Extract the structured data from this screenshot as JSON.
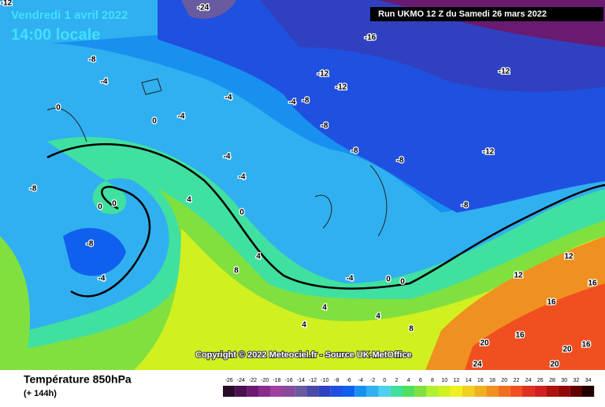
{
  "header": {
    "date": "Vendredi 1 avril 2022",
    "time": "14:00 locale",
    "run": "Run UKMO 12 Z du Samedi 26 mars 2022"
  },
  "copyright": "Copyright © 2022 Meteociel.fr - Source UK-MetOffice",
  "legend": {
    "title": "Température 850hPa",
    "subtitle": "(+ 144h)",
    "scale": [
      {
        "label": "-26",
        "color": "#2a0a2a"
      },
      {
        "label": "-24",
        "color": "#4a1050"
      },
      {
        "label": "-22",
        "color": "#6a1a70"
      },
      {
        "label": "-20",
        "color": "#8a2a8a"
      },
      {
        "label": "-18",
        "color": "#a040a0"
      },
      {
        "label": "-16",
        "color": "#8a4a9a"
      },
      {
        "label": "-14",
        "color": "#6a5aa0"
      },
      {
        "label": "-12",
        "color": "#4a4aa8"
      },
      {
        "label": "-10",
        "color": "#3040c0"
      },
      {
        "label": "-8",
        "color": "#2050e0"
      },
      {
        "label": "-6",
        "color": "#1060f0"
      },
      {
        "label": "-4",
        "color": "#1890f0"
      },
      {
        "label": "-2",
        "color": "#30b0f0"
      },
      {
        "label": "0",
        "color": "#50d0f0"
      },
      {
        "label": "2",
        "color": "#40e0a0"
      },
      {
        "label": "4",
        "color": "#50e060"
      },
      {
        "label": "6",
        "color": "#80e040"
      },
      {
        "label": "8",
        "color": "#b0f030"
      },
      {
        "label": "10",
        "color": "#d0f020"
      },
      {
        "label": "12",
        "color": "#f0f020"
      },
      {
        "label": "14",
        "color": "#f0d020"
      },
      {
        "label": "16",
        "color": "#f0b020"
      },
      {
        "label": "18",
        "color": "#f09020"
      },
      {
        "label": "20",
        "color": "#f07020"
      },
      {
        "label": "22",
        "color": "#f05020"
      },
      {
        "label": "24",
        "color": "#e03020"
      },
      {
        "label": "26",
        "color": "#d02020"
      },
      {
        "label": "28",
        "color": "#b01010"
      },
      {
        "label": "30",
        "color": "#900808"
      },
      {
        "label": "32",
        "color": "#600000"
      },
      {
        "label": "34",
        "color": "#200000"
      }
    ]
  },
  "contour_labels": [
    "-24",
    "-16",
    "-12",
    "-12",
    "-12",
    "-12",
    "-8",
    "-8",
    "-8",
    "-8",
    "-8",
    "-8",
    "-8",
    "-8",
    "-4",
    "-4",
    "-4",
    "-4",
    "-4",
    "-4",
    "-4",
    "-4",
    "0",
    "0",
    "0",
    "0",
    "0",
    "0",
    "0",
    "4",
    "4",
    "4",
    "4",
    "4",
    "8",
    "8",
    "12",
    "12",
    "16",
    "16",
    "16",
    "20",
    "20",
    "24",
    "20",
    "16",
    "-12"
  ]
}
